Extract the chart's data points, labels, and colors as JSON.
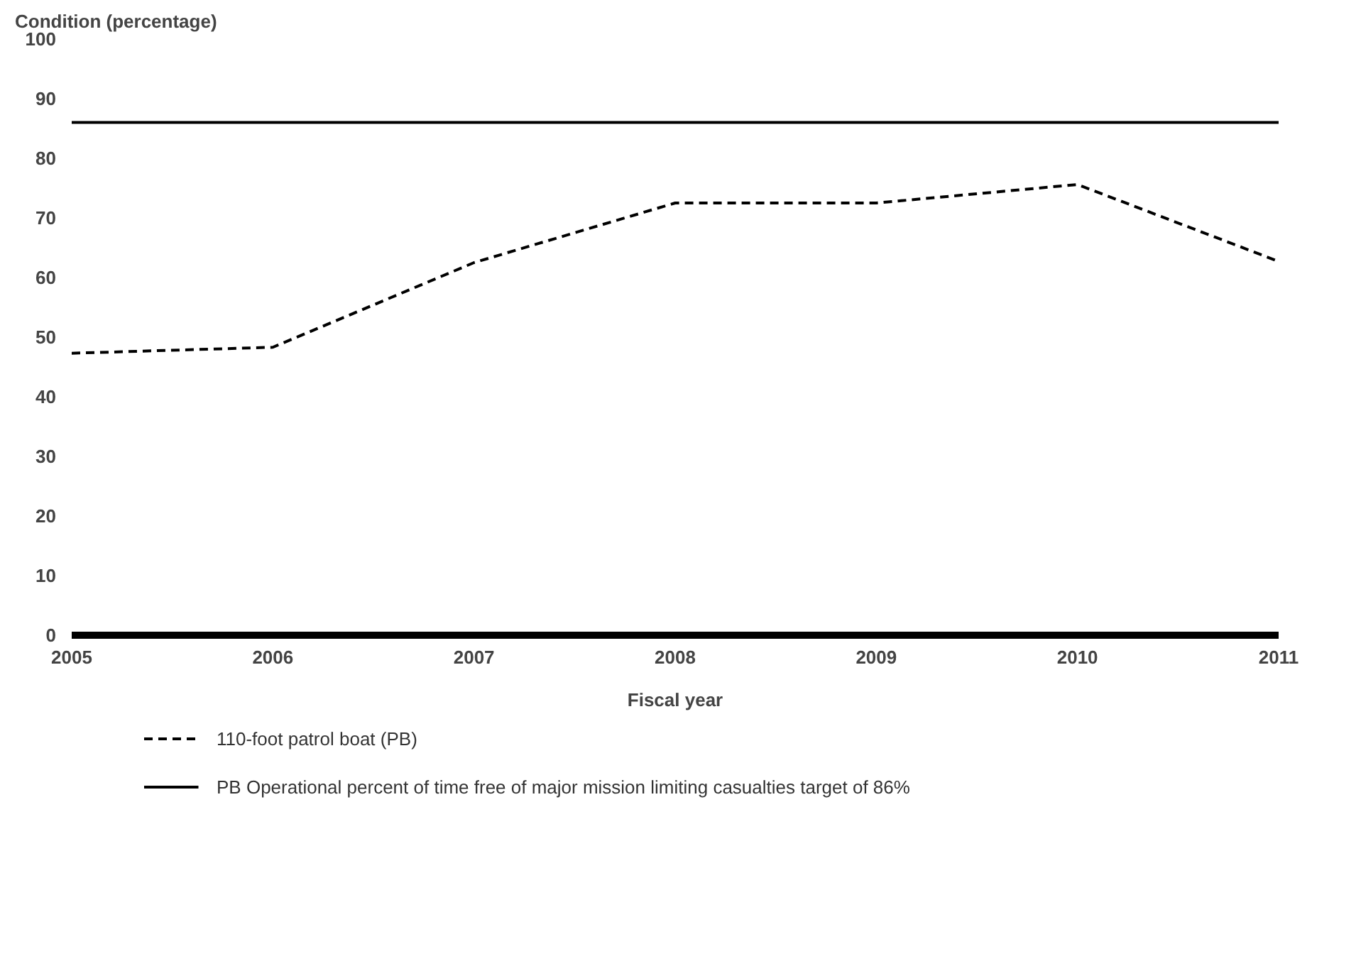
{
  "chart_data": {
    "type": "line",
    "ylabel": "Condition (percentage)",
    "xlabel": "Fiscal year",
    "x": [
      2005,
      2006,
      2007,
      2008,
      2009,
      2010,
      2011
    ],
    "series": [
      {
        "name": "110-foot patrol boat (PB)",
        "color": "#000000",
        "values": [
          47.3,
          48.3,
          62.5,
          72.5,
          72.5,
          75.6,
          62.7
        ],
        "line_style": "dashed"
      }
    ],
    "ref_lines": [
      {
        "axis": "y",
        "value": 86,
        "label": "PB Operational percent of time free of major mission limiting casualties target of 86%",
        "color": "#000000",
        "line_style": "solid"
      }
    ],
    "xlim": [
      2005,
      2011
    ],
    "ylim": [
      0,
      100
    ],
    "xticks": [
      2005,
      2006,
      2007,
      2008,
      2009,
      2010,
      2011
    ],
    "yticks": [
      0,
      10,
      20,
      30,
      40,
      50,
      60,
      70,
      80,
      90,
      100
    ],
    "grid": false,
    "legend": "bottom",
    "marker": "none"
  }
}
